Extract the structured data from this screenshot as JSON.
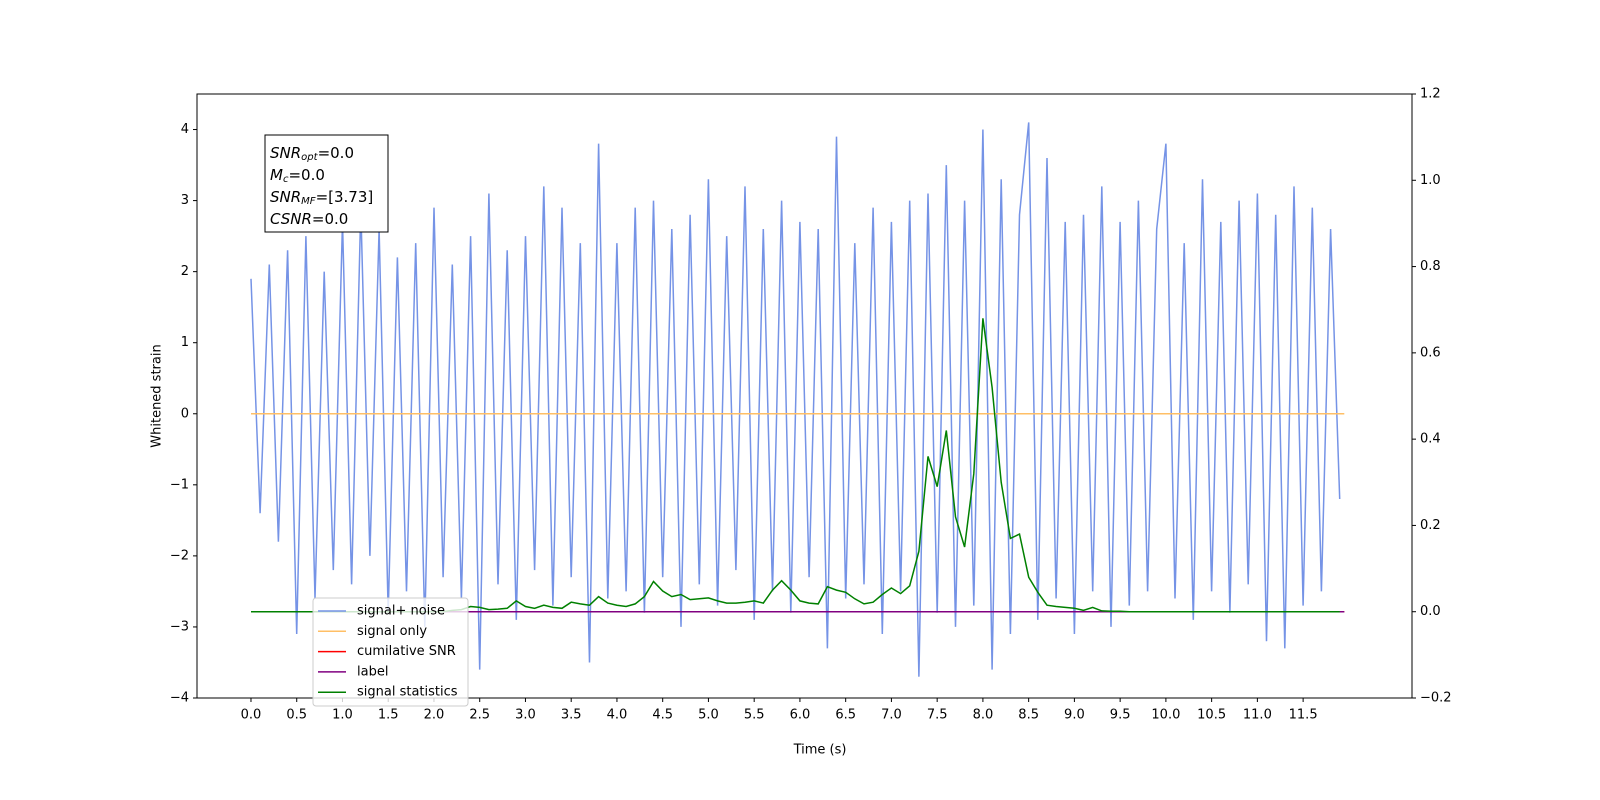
{
  "chart_data": {
    "type": "line",
    "xlabel": "Time (s)",
    "ylabel": "Whitened strain",
    "xlim": [
      -0.59,
      12.69
    ],
    "ylim": [
      -4,
      4.5
    ],
    "y2lim": [
      -0.2,
      1.2
    ],
    "xticks": [
      {
        "value": 0,
        "label": "0.0"
      },
      0.5,
      {
        "value": 1,
        "label": "1.0"
      },
      1.5,
      {
        "value": 2,
        "label": "2.0"
      },
      2.5,
      {
        "value": 3,
        "label": "3.0"
      },
      3.5,
      {
        "value": 4,
        "label": "4.0"
      },
      4.5,
      {
        "value": 5,
        "label": "5.0"
      },
      5.5,
      {
        "value": 6,
        "label": "6.0"
      },
      6.5,
      {
        "value": 7,
        "label": "7.0"
      },
      7.5,
      {
        "value": 8,
        "label": "8.0"
      },
      8.5,
      {
        "value": 9,
        "label": "9.0"
      },
      9.5,
      {
        "value": 10,
        "label": "10.0"
      },
      10.5,
      {
        "value": 11,
        "label": "11.0"
      },
      11.5
    ],
    "yticks": [
      {
        "value": -4,
        "label": "−4"
      },
      {
        "value": -3,
        "label": "−3"
      },
      {
        "value": -2,
        "label": "−2"
      },
      {
        "value": -1,
        "label": "−1"
      },
      0,
      1,
      2,
      3,
      4
    ],
    "y2ticks": [
      {
        "value": -0.2,
        "label": "−0.2"
      },
      {
        "value": 0,
        "label": "0.0"
      },
      0.2,
      0.4,
      0.6,
      0.8,
      {
        "value": 1,
        "label": "1.0"
      },
      1.2
    ],
    "legend": "lower left",
    "annotation": [
      {
        "main": "SNR",
        "sub": "opt",
        "rest": "=0.0"
      },
      {
        "main": "M",
        "sub": "c",
        "rest": "=0.0"
      },
      {
        "main": "SNR",
        "sub": "MF",
        "rest": "=[3.73]"
      },
      {
        "main": "CSNR",
        "rest": "=0.0"
      }
    ],
    "series": [
      {
        "name": "signal+ noise",
        "color": "#7593e6",
        "x": [
          0,
          0.1,
          0.2,
          0.3,
          0.4,
          0.5,
          0.6,
          0.7,
          0.8,
          0.9,
          1,
          1.1,
          1.2,
          1.3,
          1.4,
          1.5,
          1.6,
          1.7,
          1.8,
          1.9,
          2,
          2.1,
          2.2,
          2.3,
          2.4,
          2.5,
          2.6,
          2.7,
          2.8,
          2.9,
          3,
          3.1,
          3.2,
          3.3,
          3.4,
          3.5,
          3.6,
          3.7,
          3.8,
          3.9,
          4,
          4.1,
          4.2,
          4.3,
          4.4,
          4.5,
          4.6,
          4.7,
          4.8,
          4.9,
          5,
          5.1,
          5.2,
          5.3,
          5.4,
          5.5,
          5.6,
          5.7,
          5.8,
          5.9,
          6,
          6.1,
          6.2,
          6.3,
          6.4,
          6.5,
          6.6,
          6.7,
          6.8,
          6.9,
          7,
          7.1,
          7.2,
          7.3,
          7.4,
          7.5,
          7.6,
          7.7,
          7.8,
          7.9,
          8,
          8.1,
          8.2,
          8.3,
          8.4,
          8.5,
          8.6,
          8.7,
          8.8,
          8.9,
          9,
          9.1,
          9.2,
          9.3,
          9.4,
          9.5,
          9.6,
          9.7,
          9.8,
          9.9,
          10,
          10.1,
          10.2,
          10.3,
          10.4,
          10.5,
          10.6,
          10.7,
          10.8,
          10.9,
          11,
          11.1,
          11.2,
          11.3,
          11.4,
          11.5,
          11.6,
          11.7,
          11.8,
          11.9
        ],
        "values": [
          1.9,
          -1.4,
          2.1,
          -1.8,
          2.3,
          -3.1,
          2.5,
          -2.6,
          2.0,
          -2.2,
          2.7,
          -2.4,
          2.9,
          -2.0,
          2.6,
          -2.8,
          2.2,
          -2.5,
          2.4,
          -3.0,
          2.9,
          -2.3,
          2.1,
          -2.6,
          2.5,
          -3.6,
          3.1,
          -2.4,
          2.3,
          -2.9,
          2.5,
          -2.2,
          3.2,
          -2.7,
          2.9,
          -2.3,
          2.4,
          -3.5,
          3.8,
          -2.6,
          2.4,
          -2.5,
          2.9,
          -2.8,
          3.0,
          -2.3,
          2.6,
          -3.0,
          2.8,
          -2.4,
          3.3,
          -2.7,
          2.5,
          -2.2,
          3.2,
          -2.9,
          2.6,
          -2.5,
          3.0,
          -2.8,
          2.7,
          -2.3,
          2.6,
          -3.3,
          3.9,
          -2.6,
          2.4,
          -2.4,
          2.9,
          -3.1,
          2.7,
          -2.5,
          3.0,
          -3.7,
          3.1,
          -2.8,
          3.5,
          -3.0,
          3.0,
          -2.7,
          4.0,
          -3.6,
          3.3,
          -3.1,
          2.8,
          4.1,
          -2.9,
          3.6,
          -2.6,
          2.7,
          -3.1,
          2.8,
          -2.5,
          3.2,
          -3.0,
          2.7,
          -2.7,
          3.0,
          -2.5,
          2.6,
          3.8,
          -2.6,
          2.4,
          -2.9,
          3.3,
          -2.5,
          2.7,
          -2.8,
          3.0,
          -2.4,
          3.1,
          -3.2,
          2.8,
          -3.3,
          3.2,
          -2.7,
          2.9,
          -2.5,
          2.6,
          -1.2
        ]
      },
      {
        "name": "signal only",
        "color": "#ffbf66",
        "x": [
          0,
          11.95
        ],
        "values": [
          0,
          0
        ]
      },
      {
        "name": "cumilative SNR",
        "color": "#ff0000",
        "axis": "y2",
        "x": [
          0,
          11.95
        ],
        "values": [
          0,
          0
        ]
      },
      {
        "name": "label",
        "color": "#800080",
        "axis": "y2",
        "x": [
          0,
          11.95
        ],
        "values": [
          0,
          0
        ]
      },
      {
        "name": "signal statistics",
        "color": "#008000",
        "axis": "y2",
        "x": [
          0,
          0.1,
          0.2,
          0.3,
          0.4,
          0.5,
          0.6,
          0.7,
          0.8,
          0.9,
          1,
          1.1,
          1.2,
          1.3,
          1.4,
          1.5,
          1.6,
          1.7,
          1.8,
          1.9,
          2,
          2.1,
          2.2,
          2.3,
          2.4,
          2.5,
          2.6,
          2.7,
          2.8,
          2.9,
          3,
          3.1,
          3.2,
          3.3,
          3.4,
          3.5,
          3.6,
          3.7,
          3.8,
          3.9,
          4,
          4.1,
          4.2,
          4.3,
          4.4,
          4.5,
          4.6,
          4.7,
          4.8,
          4.9,
          5,
          5.1,
          5.2,
          5.3,
          5.4,
          5.5,
          5.6,
          5.7,
          5.8,
          5.9,
          6,
          6.1,
          6.2,
          6.3,
          6.4,
          6.5,
          6.6,
          6.7,
          6.8,
          6.9,
          7,
          7.1,
          7.2,
          7.3,
          7.4,
          7.5,
          7.6,
          7.7,
          7.8,
          7.9,
          8,
          8.1,
          8.2,
          8.3,
          8.4,
          8.5,
          8.6,
          8.7,
          8.8,
          8.9,
          9,
          9.1,
          9.2,
          9.3,
          9.4,
          9.5,
          9.6,
          9.7,
          9.8,
          9.9,
          10,
          10.1,
          10.2,
          10.3,
          10.4,
          10.5,
          10.6,
          10.7,
          10.8,
          10.9,
          11,
          11.1,
          11.2,
          11.3,
          11.4,
          11.5,
          11.6,
          11.7,
          11.8,
          11.9
        ],
        "values": [
          0,
          0,
          0,
          0,
          0,
          0,
          0,
          0,
          0,
          0,
          0,
          0,
          0,
          0,
          0,
          0,
          0,
          0,
          0,
          0,
          0,
          0,
          0.003,
          0.005,
          0.012,
          0.01,
          0.005,
          0.006,
          0.008,
          0.025,
          0.012,
          0.008,
          0.015,
          0.01,
          0.008,
          0.022,
          0.018,
          0.015,
          0.035,
          0.02,
          0.015,
          0.012,
          0.018,
          0.035,
          0.07,
          0.048,
          0.035,
          0.04,
          0.028,
          0.03,
          0.032,
          0.025,
          0.02,
          0.02,
          0.022,
          0.025,
          0.02,
          0.05,
          0.072,
          0.05,
          0.025,
          0.02,
          0.018,
          0.058,
          0.05,
          0.045,
          0.03,
          0.018,
          0.022,
          0.04,
          0.055,
          0.042,
          0.06,
          0.14,
          0.36,
          0.29,
          0.42,
          0.22,
          0.15,
          0.32,
          0.68,
          0.52,
          0.3,
          0.17,
          0.18,
          0.08,
          0.045,
          0.015,
          0.012,
          0.01,
          0.008,
          0.003,
          0.01,
          0.002,
          0.001,
          0.001,
          0,
          0,
          0,
          0,
          0,
          0,
          0,
          0,
          0,
          0,
          0,
          0,
          0,
          0,
          0,
          0,
          0,
          0,
          0,
          0,
          0,
          0,
          0,
          0
        ]
      }
    ]
  }
}
